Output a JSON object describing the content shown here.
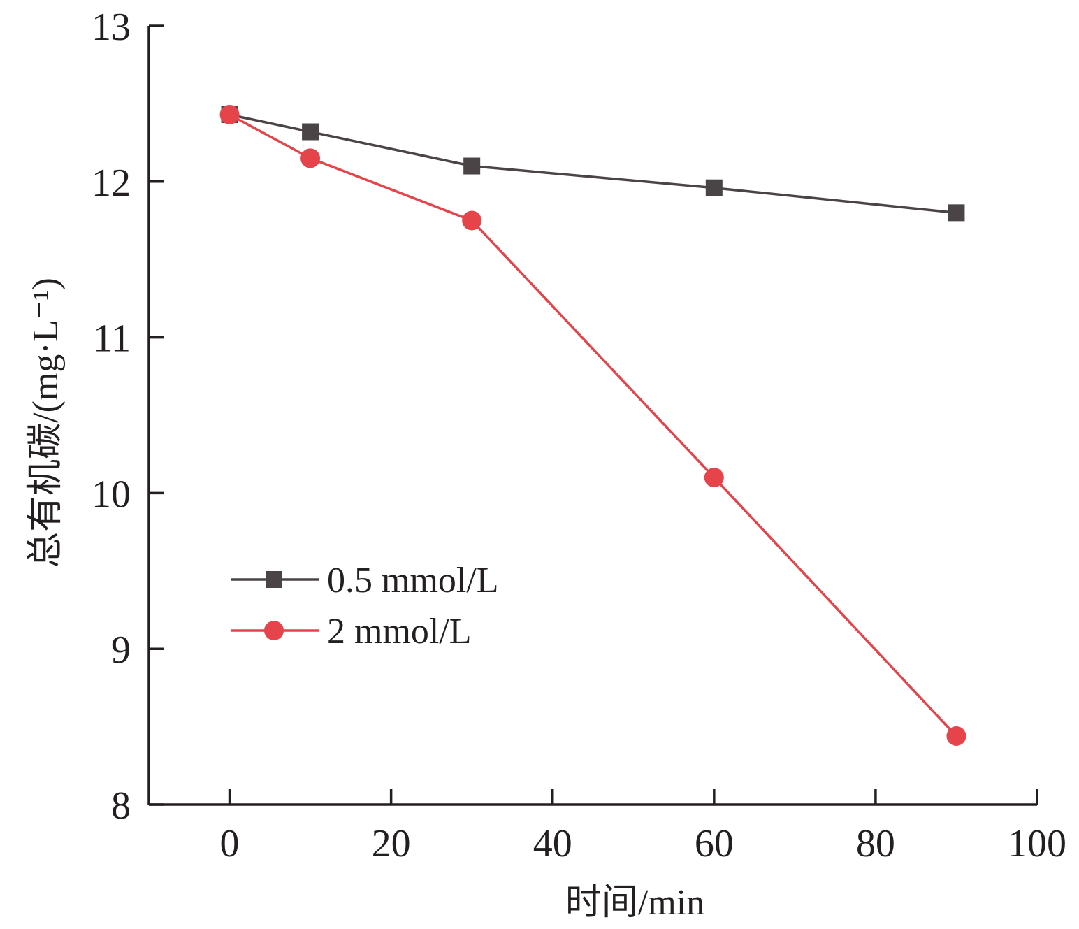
{
  "chart_data": {
    "type": "line",
    "xlabel": "时间/min",
    "ylabel": "总有机碳/(mg·L⁻¹)",
    "xlim": [
      -10,
      100
    ],
    "ylim": [
      8,
      13
    ],
    "xticks": [
      0,
      20,
      40,
      60,
      80,
      100
    ],
    "yticks": [
      8,
      9,
      10,
      11,
      12,
      13
    ],
    "grid": false,
    "legend_position": "center-left",
    "x": [
      0,
      10,
      30,
      60,
      90
    ],
    "series": [
      {
        "name": "0.5 mmol/L",
        "values": [
          12.43,
          12.32,
          12.1,
          11.96,
          11.8
        ],
        "color": "#4a4446",
        "marker": "square"
      },
      {
        "name": "2 mmol/L",
        "values": [
          12.43,
          12.15,
          11.75,
          10.1,
          8.44
        ],
        "color": "#e5444a",
        "marker": "circle"
      }
    ]
  }
}
